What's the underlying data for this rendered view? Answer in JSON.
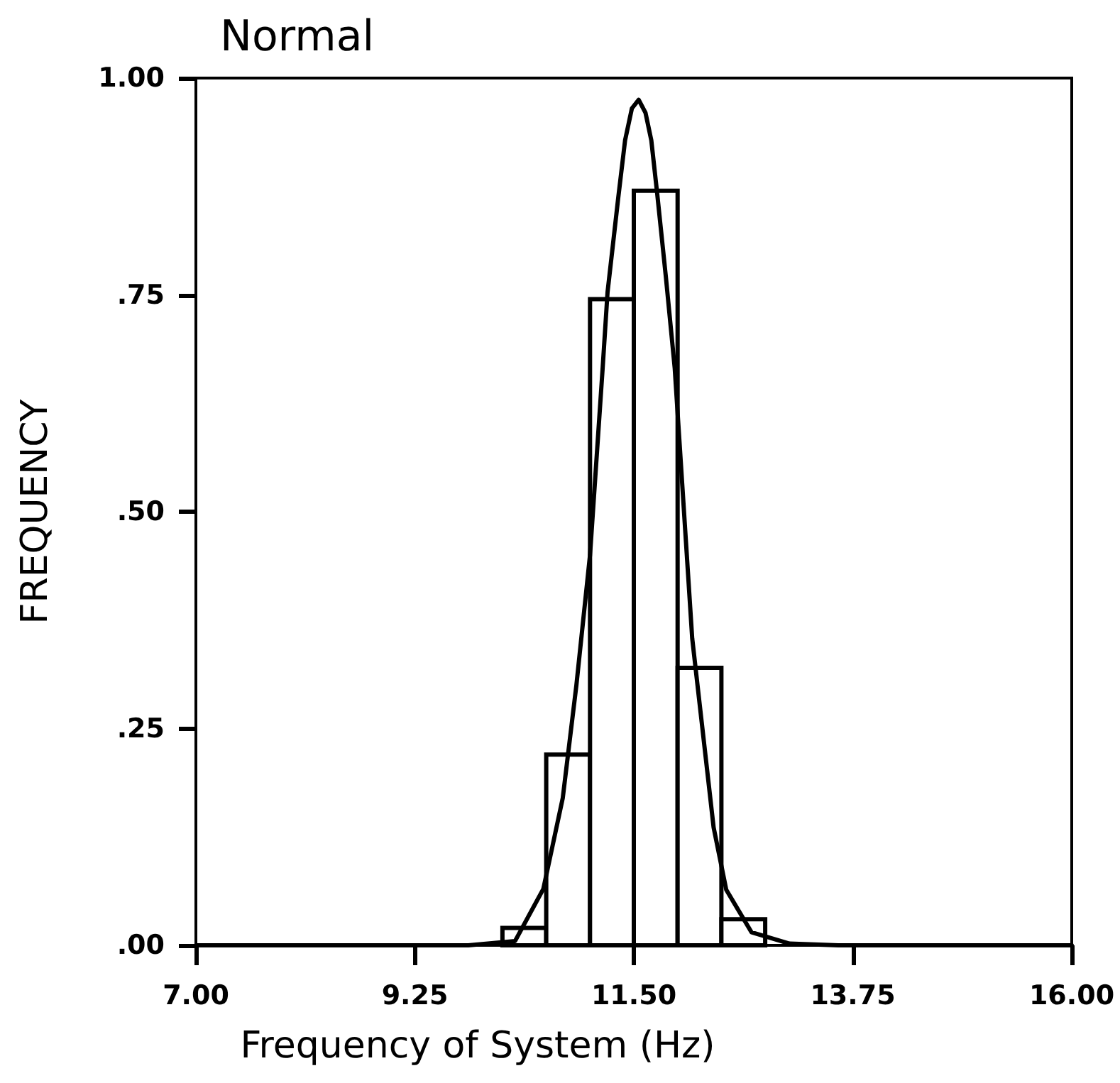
{
  "chart_data": {
    "type": "histogram",
    "title": "Normal",
    "xlabel": "Frequency of System (Hz)",
    "ylabel": "FREQUENCY",
    "xlim": [
      7,
      16
    ],
    "xticks": [
      {
        "value": 7,
        "label": "7.00"
      },
      {
        "value": 9.25,
        "label": "9.25"
      },
      {
        "value": 11.5,
        "label": "11.50"
      },
      {
        "value": 13.75,
        "label": "13.75"
      },
      {
        "value": 16,
        "label": "16.00"
      }
    ],
    "ylim": [
      0,
      1
    ],
    "yticks": [
      {
        "value": 0,
        "label": ".00"
      },
      {
        "value": 0.25,
        "label": ".25"
      },
      {
        "value": 0.5,
        "label": ".50"
      },
      {
        "value": 0.75,
        "label": ".75"
      },
      {
        "value": 1,
        "label": "1.00"
      }
    ],
    "grid": false,
    "series": [
      {
        "color": "#000000",
        "bins": [
          10.15,
          10.6,
          11.05,
          11.5,
          11.95,
          12.4,
          12.85
        ],
        "values": [
          0.02,
          0.22,
          0.745,
          0.87,
          0.32,
          0.03
        ]
      },
      {
        "type": "line",
        "color": "#000000",
        "x": [
          7,
          9.8,
          10.28,
          10.57,
          10.77,
          10.91,
          11.05,
          11.18,
          11.23,
          11.34,
          11.41,
          11.48,
          11.55,
          11.62,
          11.68,
          11.74,
          11.83,
          11.92,
          12.1,
          12.21,
          12.32,
          12.45,
          12.71,
          13.1,
          13.6,
          16
        ],
        "values": [
          0,
          0,
          0.005,
          0.065,
          0.17,
          0.3,
          0.45,
          0.666,
          0.753,
          0.862,
          0.928,
          0.965,
          0.975,
          0.96,
          0.928,
          0.867,
          0.77,
          0.666,
          0.354,
          0.245,
          0.136,
          0.064,
          0.015,
          0.002,
          0,
          0
        ]
      }
    ]
  }
}
